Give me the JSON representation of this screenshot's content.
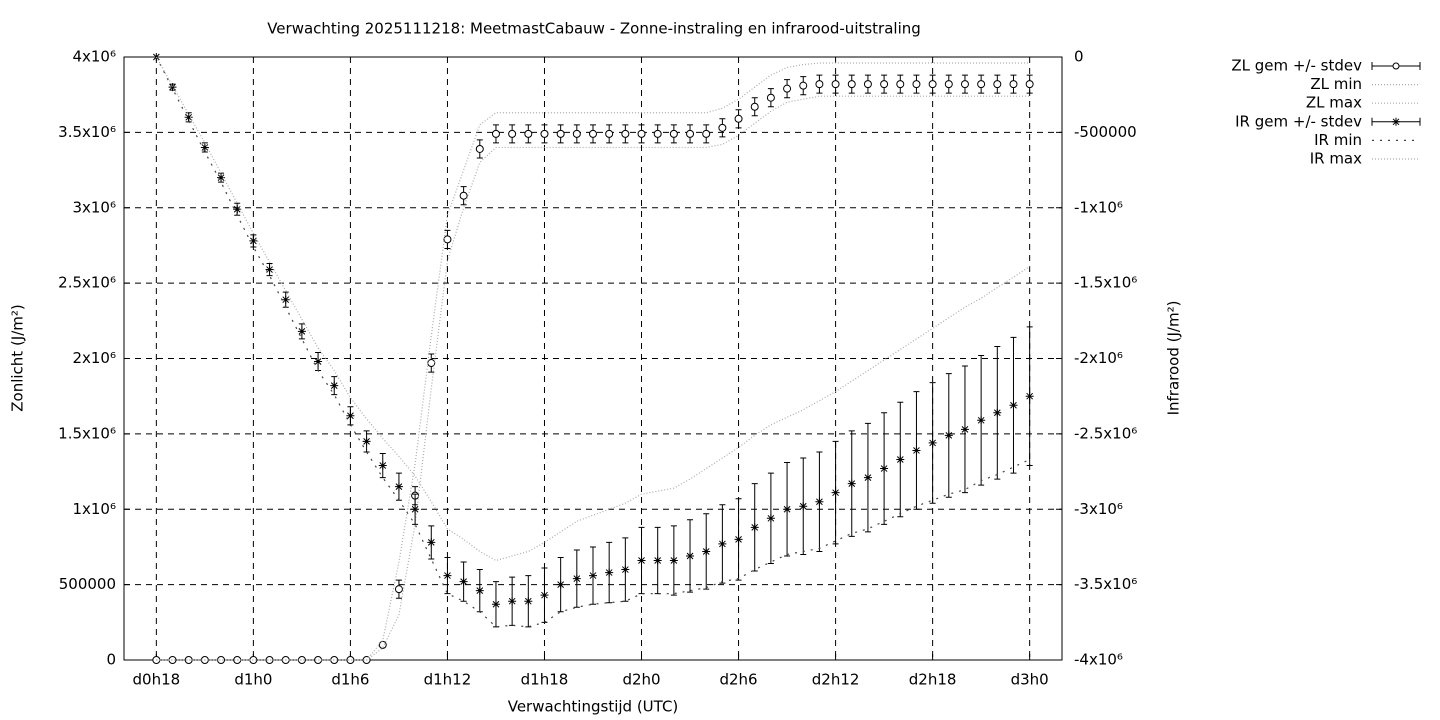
{
  "chart_data": {
    "type": "errorbar",
    "title": "Verwachting 2025111218: MeetmastCabauw - Zonne-instraling en infrarood-uitstraling",
    "x_label": "Verwachtingstijd (UTC)",
    "y_label": "Zonlicht (J/m²)",
    "y2_label": "Infrarood (J/m²)",
    "grid": true,
    "legend": "outside-top-right",
    "xlim": [
      16,
      74
    ],
    "xticks": [
      {
        "value": 18,
        "label": "d0h18"
      },
      {
        "value": 24,
        "label": "d1h0"
      },
      {
        "value": 30,
        "label": "d1h6"
      },
      {
        "value": 36,
        "label": "d1h12"
      },
      {
        "value": 42,
        "label": "d1h18"
      },
      {
        "value": 48,
        "label": "d2h0"
      },
      {
        "value": 54,
        "label": "d2h6"
      },
      {
        "value": 60,
        "label": "d2h12"
      },
      {
        "value": 66,
        "label": "d2h18"
      },
      {
        "value": 72,
        "label": "d3h0"
      }
    ],
    "ylim": [
      0,
      4000000
    ],
    "yticks": [
      0,
      500000,
      {
        "value": 1000000,
        "label": "1x10⁶"
      },
      {
        "value": 1500000,
        "label": "1.5x10⁶"
      },
      {
        "value": 2000000,
        "label": "2x10⁶"
      },
      {
        "value": 2500000,
        "label": "2.5x10⁶"
      },
      {
        "value": 3000000,
        "label": "3x10⁶"
      },
      {
        "value": 3500000,
        "label": "3.5x10⁶"
      },
      {
        "value": 4000000,
        "label": "4x10⁶"
      }
    ],
    "y2lim": [
      -4000000,
      0
    ],
    "y2ticks": [
      0,
      -500000,
      {
        "value": -1000000,
        "label": "-1x10⁶"
      },
      {
        "value": -1500000,
        "label": "-1.5x10⁶"
      },
      {
        "value": -2000000,
        "label": "-2x10⁶"
      },
      {
        "value": -2500000,
        "label": "-2.5x10⁶"
      },
      {
        "value": -3000000,
        "label": "-3x10⁶"
      },
      {
        "value": -3500000,
        "label": "-3.5x10⁶"
      },
      {
        "value": {
          "v": -4000000
        },
        "label": "-4x10⁶"
      }
    ],
    "x": [
      18,
      19,
      20,
      21,
      22,
      23,
      24,
      25,
      26,
      27,
      28,
      29,
      30,
      31,
      32,
      33,
      34,
      35,
      36,
      37,
      38,
      39,
      40,
      41,
      42,
      43,
      44,
      45,
      46,
      47,
      48,
      49,
      50,
      51,
      52,
      53,
      54,
      55,
      56,
      57,
      58,
      59,
      60,
      61,
      62,
      63,
      64,
      65,
      66,
      67,
      68,
      69,
      70,
      71,
      72
    ],
    "series": [
      {
        "name": "ZL gem +/- stdev",
        "color": "#000000",
        "style": "errorbar",
        "marker": "circle",
        "axis": "y",
        "values": [
          0,
          0,
          0,
          0,
          0,
          0,
          0,
          0,
          0,
          0,
          0,
          0,
          0,
          0,
          100000,
          470000,
          1090000,
          1970000,
          2790000,
          3080000,
          3390000,
          3490000,
          3490000,
          3490000,
          3490000,
          3490000,
          3490000,
          3490000,
          3490000,
          3490000,
          3490000,
          3490000,
          3490000,
          3490000,
          3490000,
          3530000,
          3590000,
          3670000,
          3730000,
          3790000,
          3810000,
          3820000,
          3820000,
          3820000,
          3820000,
          3820000,
          3820000,
          3820000,
          3820000,
          3820000,
          3820000,
          3820000,
          3820000,
          3820000,
          3820000
        ],
        "errors": [
          0,
          0,
          0,
          0,
          0,
          0,
          0,
          0,
          0,
          0,
          0,
          0,
          0,
          0,
          10000,
          60000,
          60000,
          60000,
          60000,
          60000,
          60000,
          60000,
          60000,
          60000,
          60000,
          60000,
          60000,
          60000,
          60000,
          60000,
          60000,
          60000,
          60000,
          60000,
          60000,
          60000,
          60000,
          60000,
          60000,
          60000,
          60000,
          60000,
          60000,
          60000,
          60000,
          60000,
          60000,
          60000,
          60000,
          60000,
          60000,
          60000,
          60000,
          60000,
          60000
        ]
      },
      {
        "name": "ZL min",
        "color": "#aaaaaa",
        "style": "dotted",
        "axis": "y",
        "values": [
          0,
          0,
          0,
          0,
          0,
          0,
          0,
          0,
          0,
          0,
          0,
          0,
          0,
          0,
          80000,
          300000,
          900000,
          1800000,
          2650000,
          3000000,
          3300000,
          3400000,
          3400000,
          3400000,
          3400000,
          3400000,
          3400000,
          3400000,
          3400000,
          3400000,
          3400000,
          3400000,
          3400000,
          3400000,
          3400000,
          3420000,
          3480000,
          3560000,
          3640000,
          3700000,
          3720000,
          3740000,
          3740000,
          3740000,
          3740000,
          3740000,
          3740000,
          3740000,
          3740000,
          3740000,
          3740000,
          3740000,
          3740000,
          3740000,
          3740000
        ]
      },
      {
        "name": "ZL max",
        "color": "#aaaaaa",
        "style": "dotted",
        "axis": "y",
        "values": [
          0,
          0,
          0,
          0,
          0,
          0,
          0,
          0,
          0,
          0,
          0,
          0,
          0,
          0,
          130000,
          650000,
          1300000,
          2150000,
          2950000,
          3250000,
          3550000,
          3630000,
          3630000,
          3630000,
          3630000,
          3630000,
          3630000,
          3630000,
          3630000,
          3630000,
          3630000,
          3630000,
          3630000,
          3630000,
          3630000,
          3660000,
          3720000,
          3800000,
          3880000,
          3930000,
          3950000,
          3960000,
          3960000,
          3960000,
          3960000,
          3960000,
          3960000,
          3960000,
          3960000,
          3960000,
          3960000,
          3960000,
          3960000,
          3960000,
          3960000
        ]
      },
      {
        "name": "IR gem +/- stdev",
        "color": "#000000",
        "style": "errorbar",
        "marker": "star",
        "axis": "y2",
        "values": [
          0,
          -200000,
          -400000,
          -600000,
          -800000,
          -1010000,
          -1220000,
          -1410000,
          -1610000,
          -1820000,
          -2020000,
          -2180000,
          -2380000,
          -2550000,
          -2710000,
          -2850000,
          -3000000,
          -3220000,
          -3440000,
          -3480000,
          -3540000,
          -3630000,
          -3610000,
          -3610000,
          -3570000,
          -3500000,
          -3460000,
          -3440000,
          -3420000,
          -3400000,
          -3340000,
          -3340000,
          -3340000,
          -3310000,
          -3280000,
          -3230000,
          -3200000,
          -3120000,
          -3060000,
          -3000000,
          -2980000,
          -2950000,
          -2890000,
          -2830000,
          -2790000,
          -2730000,
          -2670000,
          -2610000,
          -2560000,
          -2510000,
          -2470000,
          -2410000,
          -2360000,
          -2310000,
          -2250000
        ],
        "errors": [
          0,
          20000,
          30000,
          30000,
          30000,
          40000,
          40000,
          40000,
          50000,
          50000,
          60000,
          60000,
          60000,
          70000,
          80000,
          90000,
          100000,
          110000,
          120000,
          130000,
          140000,
          150000,
          160000,
          170000,
          180000,
          180000,
          190000,
          190000,
          200000,
          210000,
          220000,
          220000,
          230000,
          240000,
          250000,
          260000,
          270000,
          290000,
          300000,
          310000,
          320000,
          330000,
          340000,
          350000,
          360000,
          370000,
          380000,
          390000,
          400000,
          410000,
          420000,
          430000,
          440000,
          450000,
          460000
        ]
      },
      {
        "name": "IR min",
        "color": "#444444",
        "style": "dotted",
        "axis": "y2",
        "values": [
          0,
          -210000,
          -420000,
          -630000,
          -830000,
          -1050000,
          -1260000,
          -1450000,
          -1660000,
          -1870000,
          -2080000,
          -2240000,
          -2440000,
          -2620000,
          -2790000,
          -2940000,
          -3100000,
          -3330000,
          -3560000,
          -3610000,
          -3680000,
          -3780000,
          -3770000,
          -3780000,
          -3750000,
          -3680000,
          -3650000,
          -3630000,
          -3620000,
          -3610000,
          -3560000,
          -3560000,
          -3560000,
          -3540000,
          -3520000,
          -3480000,
          -3460000,
          -3400000,
          -3350000,
          -3300000,
          -3280000,
          -3260000,
          -3210000,
          -3160000,
          -3130000,
          -3080000,
          -3030000,
          -2980000,
          -2940000,
          -2900000,
          -2870000,
          -2810000,
          -2770000,
          -2720000,
          -2670000
        ]
      },
      {
        "name": "IR max",
        "color": "#aaaaaa",
        "style": "dotted",
        "axis": "y2",
        "values": [
          0,
          -190000,
          -380000,
          -570000,
          -770000,
          -970000,
          -1170000,
          -1360000,
          -1550000,
          -1740000,
          -1930000,
          -2080000,
          -2260000,
          -2400000,
          -2530000,
          -2650000,
          -2780000,
          -2950000,
          -3130000,
          -3200000,
          -3280000,
          -3340000,
          -3310000,
          -3280000,
          -3220000,
          -3150000,
          -3080000,
          -3040000,
          -3000000,
          -2960000,
          -2900000,
          -2880000,
          -2860000,
          -2800000,
          -2730000,
          -2660000,
          -2590000,
          -2510000,
          -2440000,
          -2390000,
          -2340000,
          -2280000,
          -2220000,
          -2150000,
          -2080000,
          -2010000,
          -1940000,
          -1870000,
          -1800000,
          -1730000,
          -1660000,
          -1600000,
          -1530000,
          -1460000,
          -1390000
        ]
      }
    ]
  }
}
